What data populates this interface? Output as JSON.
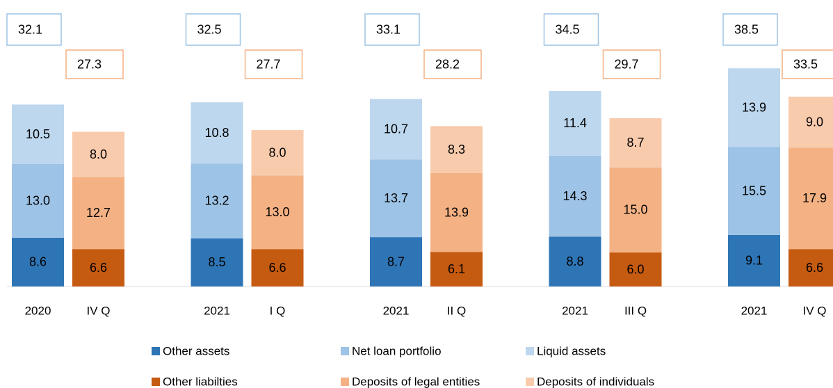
{
  "chart_data": {
    "type": "grouped_stacked_bar",
    "categories": [
      {
        "year": "2020",
        "quarter": "IV Q"
      },
      {
        "year": "2021",
        "quarter": "I Q"
      },
      {
        "year": "2021",
        "quarter": "II Q"
      },
      {
        "year": "2021",
        "quarter": "III Q"
      },
      {
        "year": "2021",
        "quarter": "IV Q"
      }
    ],
    "series": [
      {
        "name": "Other assets",
        "stack": "assets",
        "color": "#2e75b6",
        "values": [
          8.6,
          8.5,
          8.7,
          8.8,
          9.1
        ],
        "value_labels": [
          "8.6",
          "8.5",
          "8.7",
          "8.8",
          "9.1"
        ]
      },
      {
        "name": "Net loan portfolio",
        "stack": "assets",
        "color": "#9dc3e6",
        "values": [
          13.0,
          13.2,
          13.7,
          14.3,
          15.5
        ],
        "value_labels": [
          "13.0",
          "13.2",
          "13.7",
          "14.3",
          "15.5"
        ]
      },
      {
        "name": "Liquid assets",
        "stack": "assets",
        "color": "#bdd7ee",
        "values": [
          10.5,
          10.8,
          10.7,
          11.4,
          13.9
        ],
        "value_labels": [
          "10.5",
          "10.8",
          "10.7",
          "11.4",
          "13.9"
        ]
      },
      {
        "name": "Other liabilties",
        "stack": "liabilities",
        "color": "#c55a11",
        "values": [
          6.6,
          6.6,
          6.1,
          6.0,
          6.6
        ],
        "value_labels": [
          "6.6",
          "6.6",
          "6.1",
          "6.0",
          "6.6"
        ]
      },
      {
        "name": "Deposits of legal entities",
        "stack": "liabilities",
        "color": "#f4b183",
        "values": [
          12.7,
          13.0,
          13.9,
          15.0,
          17.9
        ],
        "value_labels": [
          "12.7",
          "13.0",
          "13.9",
          "15.0",
          "17.9"
        ]
      },
      {
        "name": "Deposits of individuals",
        "stack": "liabilities",
        "color": "#f8cbad",
        "values": [
          8.0,
          8.0,
          8.3,
          8.7,
          9.0
        ],
        "value_labels": [
          "8.0",
          "8.0",
          "8.3",
          "8.7",
          "9.0"
        ]
      }
    ],
    "stack_totals": {
      "assets": {
        "color": "#9dc3e6",
        "values": [
          32.1,
          32.5,
          33.1,
          34.5,
          38.5
        ],
        "value_labels": [
          "32.1",
          "32.5",
          "33.1",
          "34.5",
          "38.5"
        ]
      },
      "liabilities": {
        "color": "#f4b183",
        "values": [
          27.3,
          27.7,
          28.2,
          29.7,
          33.5
        ],
        "value_labels": [
          "27.3",
          "27.7",
          "28.2",
          "29.7",
          "33.5"
        ]
      }
    }
  }
}
